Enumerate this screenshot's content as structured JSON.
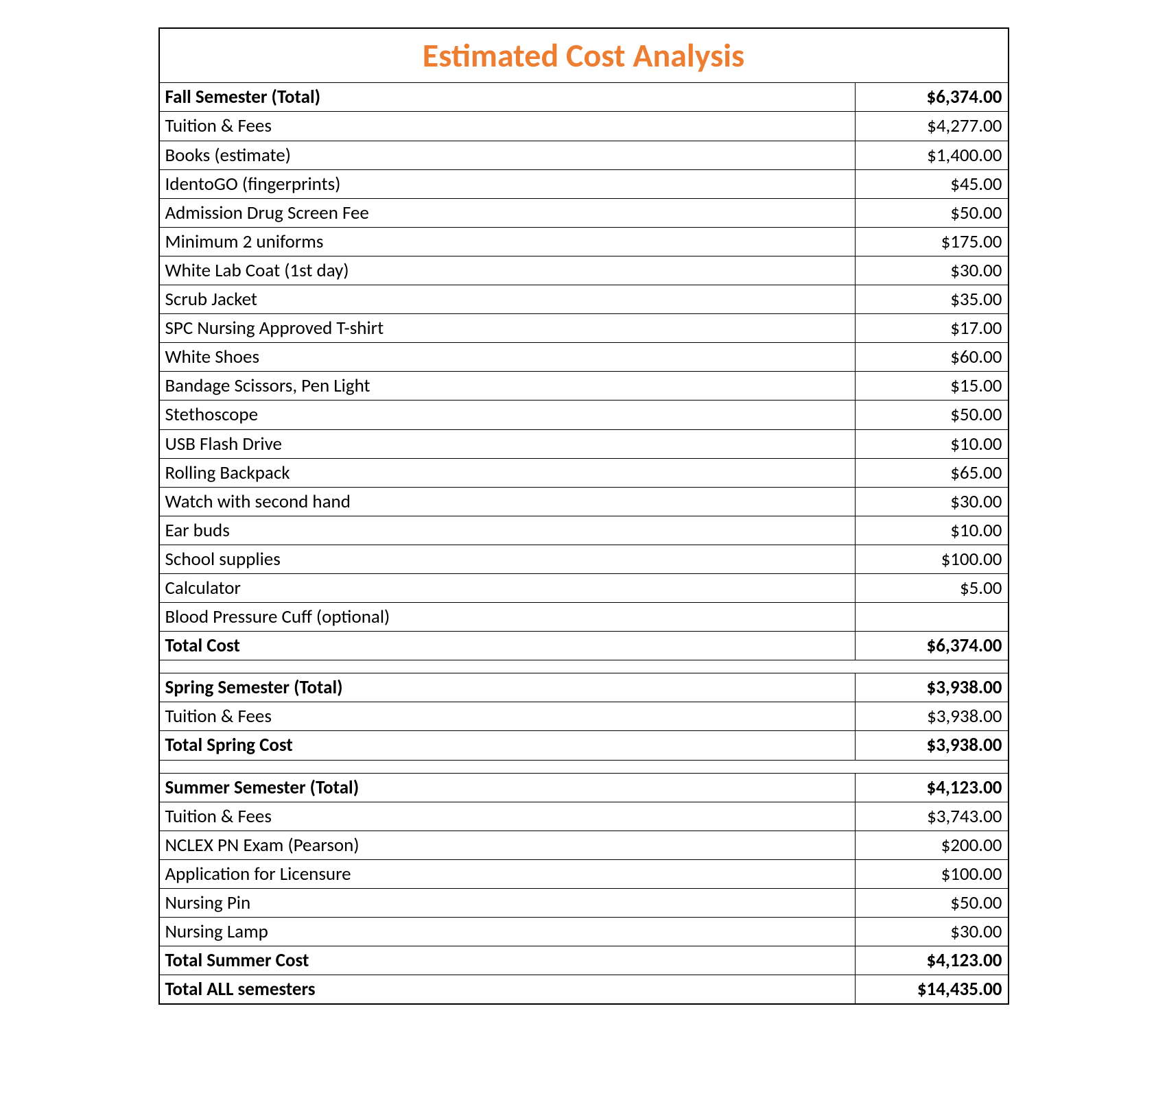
{
  "title": "Estimated Cost Analysis",
  "colors": {
    "title": "#ED7D31",
    "border": "#000000",
    "text": "#000000",
    "background": "#ffffff"
  },
  "typography": {
    "title_fontsize": 48,
    "row_fontsize": 27,
    "font_family": "Calibri"
  },
  "rows": [
    {
      "type": "bold",
      "label": "Fall Semester (Total)",
      "value": "$6,374.00"
    },
    {
      "type": "normal",
      "label": "Tuition & Fees",
      "value": "$4,277.00"
    },
    {
      "type": "normal",
      "label": "Books (estimate)",
      "value": "$1,400.00"
    },
    {
      "type": "normal",
      "label": "IdentoGO (fingerprints)",
      "value": "$45.00"
    },
    {
      "type": "normal",
      "label": "Admission Drug Screen Fee",
      "value": "$50.00"
    },
    {
      "type": "normal",
      "label": "Minimum 2 uniforms",
      "value": "$175.00"
    },
    {
      "type": "normal",
      "label": "White Lab Coat (1st day)",
      "value": "$30.00"
    },
    {
      "type": "normal",
      "label": "Scrub Jacket",
      "value": "$35.00"
    },
    {
      "type": "normal",
      "label": "SPC Nursing Approved T-shirt",
      "value": "$17.00"
    },
    {
      "type": "normal",
      "label": "White Shoes",
      "value": "$60.00"
    },
    {
      "type": "normal",
      "label": "Bandage Scissors, Pen Light",
      "value": "$15.00"
    },
    {
      "type": "normal",
      "label": "Stethoscope",
      "value": "$50.00"
    },
    {
      "type": "normal",
      "label": "USB Flash Drive",
      "value": "$10.00"
    },
    {
      "type": "normal",
      "label": "Rolling Backpack",
      "value": "$65.00"
    },
    {
      "type": "normal",
      "label": "Watch with second hand",
      "value": "$30.00"
    },
    {
      "type": "normal",
      "label": "Ear buds",
      "value": "$10.00"
    },
    {
      "type": "normal",
      "label": "School supplies",
      "value": "$100.00"
    },
    {
      "type": "normal",
      "label": "Calculator",
      "value": "$5.00"
    },
    {
      "type": "normal",
      "label": "Blood Pressure Cuff (optional)",
      "value": ""
    },
    {
      "type": "bold",
      "label": "Total Cost",
      "value": "$6,374.00"
    },
    {
      "type": "spacer"
    },
    {
      "type": "bold",
      "label": "Spring Semester (Total)",
      "value": "$3,938.00"
    },
    {
      "type": "normal",
      "label": "Tuition & Fees",
      "value": "$3,938.00"
    },
    {
      "type": "bold",
      "label": "Total Spring Cost",
      "value": "$3,938.00"
    },
    {
      "type": "spacer"
    },
    {
      "type": "bold",
      "label": "Summer Semester (Total)",
      "value": "$4,123.00"
    },
    {
      "type": "normal",
      "label": "Tuition & Fees",
      "value": "$3,743.00"
    },
    {
      "type": "normal",
      "label": "NCLEX PN Exam (Pearson)",
      "value": "$200.00"
    },
    {
      "type": "normal",
      "label": "Application for Licensure",
      "value": "$100.00"
    },
    {
      "type": "normal",
      "label": "Nursing Pin",
      "value": "$50.00"
    },
    {
      "type": "normal",
      "label": "Nursing Lamp",
      "value": "$30.00"
    },
    {
      "type": "bold",
      "label": "Total Summer Cost",
      "value": "$4,123.00"
    },
    {
      "type": "bold",
      "label": "Total ALL semesters",
      "value": "$14,435.00"
    }
  ]
}
